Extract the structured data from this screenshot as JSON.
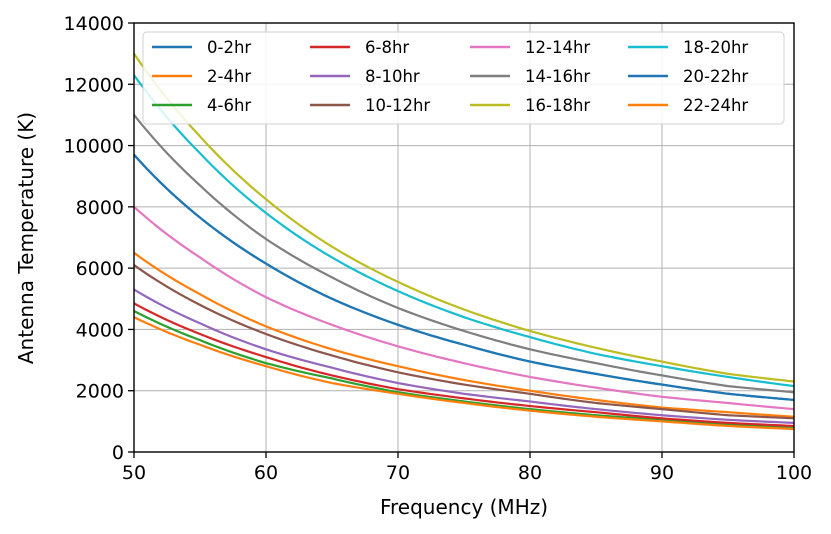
{
  "chart_data": {
    "type": "line",
    "title": "",
    "xlabel": "Frequency (MHz)",
    "ylabel": "Antenna Temperature (K)",
    "xlim": [
      50,
      100
    ],
    "ylim": [
      0,
      14000
    ],
    "xticks": [
      50,
      60,
      70,
      80,
      90,
      100
    ],
    "yticks": [
      0,
      2000,
      4000,
      6000,
      8000,
      10000,
      12000,
      14000
    ],
    "grid": true,
    "legend_position": "top",
    "legend_columns": 4,
    "model": "T(f) = T50 * (f/50)^-2.5",
    "x": [
      50,
      55,
      60,
      65,
      70,
      75,
      80,
      85,
      90,
      95,
      100
    ],
    "series": [
      {
        "name": "0-2hr",
        "color": "#1f77b4",
        "values": [
          9700,
          7650,
          6150,
          5000,
          4150,
          3500,
          2950,
          2550,
          2200,
          1900,
          1700
        ]
      },
      {
        "name": "2-4hr",
        "color": "#ff7f0e",
        "values": [
          6500,
          5150,
          4100,
          3350,
          2800,
          2350,
          2000,
          1700,
          1450,
          1300,
          1150
        ]
      },
      {
        "name": "4-6hr",
        "color": "#2ca02c",
        "values": [
          4600,
          3650,
          2900,
          2400,
          1950,
          1650,
          1400,
          1200,
          1050,
          900,
          800
        ]
      },
      {
        "name": "6-8hr",
        "color": "#d62728",
        "values": [
          4850,
          3850,
          3100,
          2500,
          2050,
          1750,
          1500,
          1300,
          1100,
          950,
          850
        ]
      },
      {
        "name": "8-10hr",
        "color": "#9467bd",
        "values": [
          5300,
          4200,
          3350,
          2750,
          2250,
          1900,
          1650,
          1400,
          1200,
          1050,
          950
        ]
      },
      {
        "name": "10-12hr",
        "color": "#8c564b",
        "values": [
          6100,
          4800,
          3850,
          3150,
          2600,
          2200,
          1900,
          1600,
          1400,
          1200,
          1100
        ]
      },
      {
        "name": "12-14hr",
        "color": "#e377c2",
        "values": [
          8000,
          6350,
          5050,
          4150,
          3450,
          2900,
          2450,
          2100,
          1800,
          1600,
          1400
        ]
      },
      {
        "name": "14-16hr",
        "color": "#7f7f7f",
        "values": [
          11000,
          8700,
          6950,
          5700,
          4700,
          3950,
          3350,
          2900,
          2500,
          2150,
          1950
        ]
      },
      {
        "name": "16-18hr",
        "color": "#bcbd22",
        "values": [
          13000,
          10300,
          8250,
          6700,
          5550,
          4650,
          3950,
          3400,
          2950,
          2550,
          2300
        ]
      },
      {
        "name": "18-20hr",
        "color": "#17becf",
        "values": [
          12300,
          9750,
          7800,
          6350,
          5250,
          4400,
          3750,
          3200,
          2800,
          2450,
          2150
        ]
      },
      {
        "name": "20-22hr",
        "color": "#1f77b4",
        "values": [
          9700,
          7650,
          6150,
          5000,
          4150,
          3500,
          2950,
          2550,
          2200,
          1900,
          1700
        ]
      },
      {
        "name": "22-24hr",
        "color": "#ff7f0e",
        "values": [
          4400,
          3500,
          2800,
          2250,
          1900,
          1600,
          1350,
          1150,
          1000,
          850,
          750
        ]
      }
    ]
  }
}
